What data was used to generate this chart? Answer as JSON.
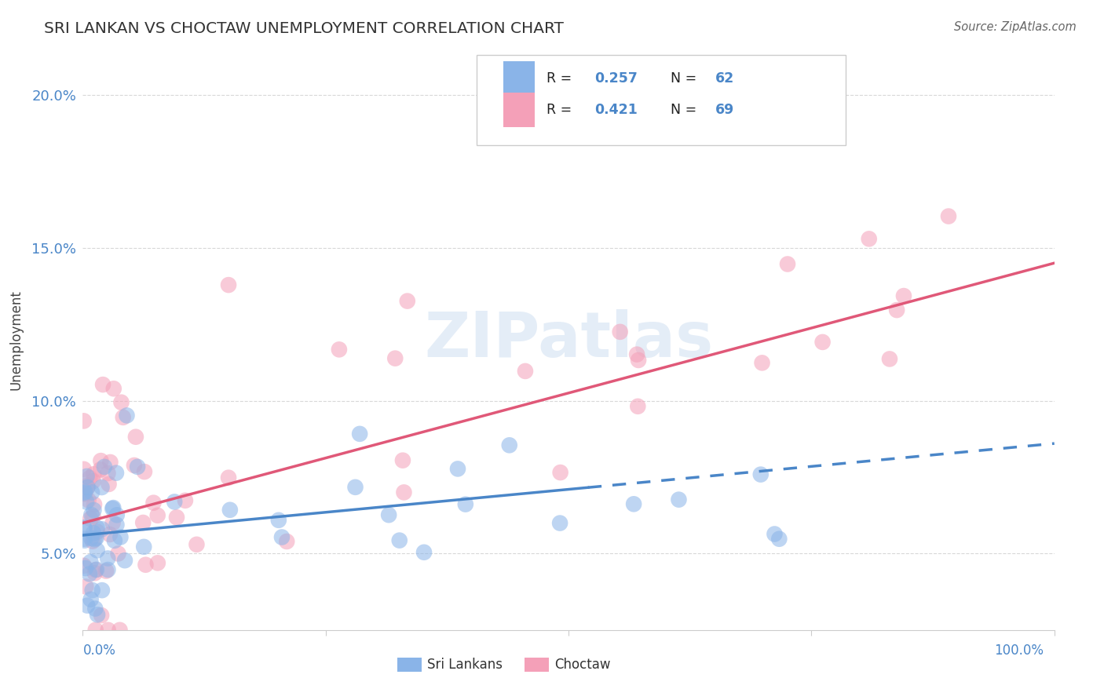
{
  "title": "SRI LANKAN VS CHOCTAW UNEMPLOYMENT CORRELATION CHART",
  "source": "Source: ZipAtlas.com",
  "ylabel": "Unemployment",
  "yticks": [
    0.05,
    0.1,
    0.15,
    0.2
  ],
  "ytick_labels": [
    "5.0%",
    "10.0%",
    "15.0%",
    "20.0%"
  ],
  "xlim": [
    0,
    1.0
  ],
  "ylim": [
    0.025,
    0.215
  ],
  "sri_lankan_color": "#8ab4e8",
  "choctaw_color": "#f4a0b8",
  "sri_lankan_line_color": "#4a86c8",
  "choctaw_line_color": "#e05878",
  "legend_r_sri": "0.257",
  "legend_n_sri": "62",
  "legend_r_cho": "0.421",
  "legend_n_cho": "69",
  "watermark": "ZIPatlas",
  "background_color": "#ffffff",
  "grid_color": "#d8d8d8",
  "sri_lankans_label": "Sri Lankans",
  "choctaw_label": "Choctaw",
  "sri_line_intercept": 0.056,
  "sri_line_slope": 0.03,
  "sri_line_solid_end": 0.52,
  "cho_line_intercept": 0.06,
  "cho_line_slope": 0.085
}
